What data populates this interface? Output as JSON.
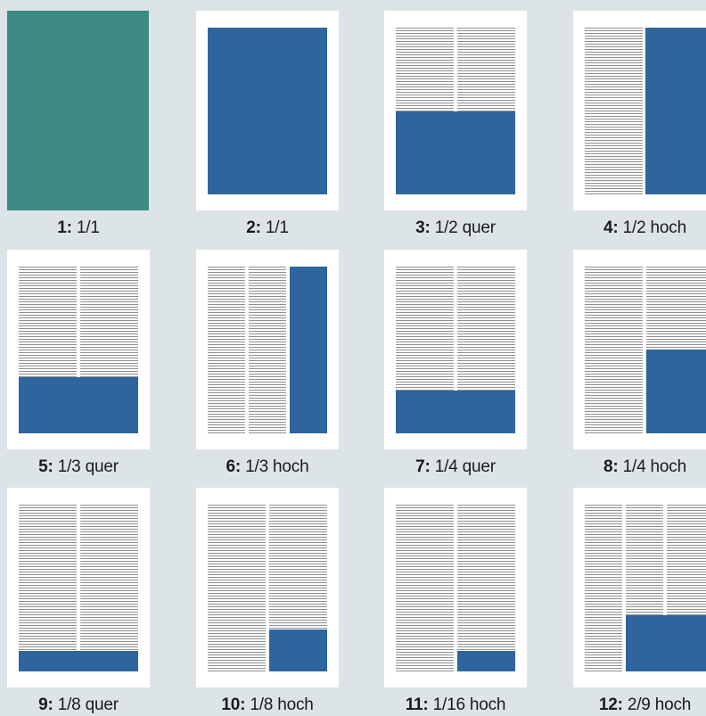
{
  "colors": {
    "background": "#dde4e7",
    "page": "#ffffff",
    "ad_blue": "#2d659c",
    "full_page_teal": "#3d8a85",
    "text_lines": "#8f8f8f"
  },
  "formats": [
    {
      "number": "1:",
      "size": "1/1",
      "variant": "full-bleed"
    },
    {
      "number": "2:",
      "size": "1/1",
      "variant": "type-area"
    },
    {
      "number": "3:",
      "size": "1/2 quer",
      "variant": "half-horizontal"
    },
    {
      "number": "4:",
      "size": "1/2 hoch",
      "variant": "half-vertical"
    },
    {
      "number": "5:",
      "size": "1/3 quer",
      "variant": "third-horizontal"
    },
    {
      "number": "6:",
      "size": "1/3 hoch",
      "variant": "third-vertical"
    },
    {
      "number": "7:",
      "size": "1/4 quer",
      "variant": "quarter-horizontal"
    },
    {
      "number": "8:",
      "size": "1/4 hoch",
      "variant": "quarter-vertical"
    },
    {
      "number": "9:",
      "size": "1/8 quer",
      "variant": "eighth-horizontal"
    },
    {
      "number": "10:",
      "size": "1/8 hoch",
      "variant": "eighth-vertical"
    },
    {
      "number": "11:",
      "size": "1/16 hoch",
      "variant": "sixteenth-vertical"
    },
    {
      "number": "12:",
      "size": "2/9 hoch",
      "variant": "two-ninths-vertical"
    }
  ]
}
